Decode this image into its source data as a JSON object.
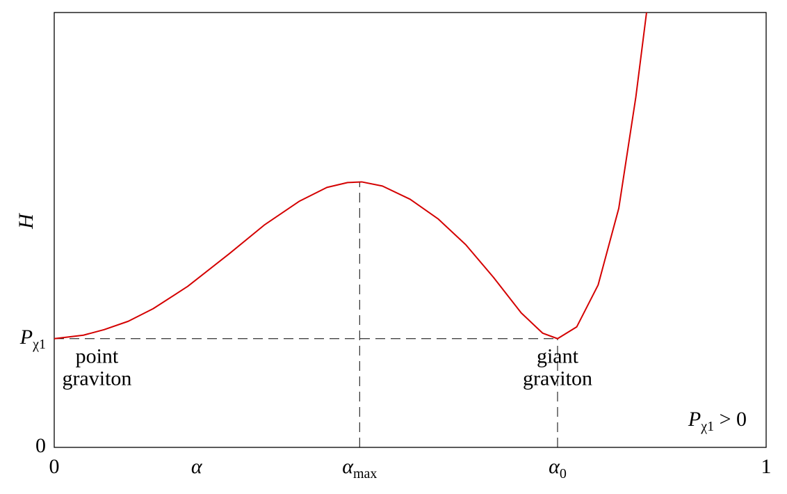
{
  "chart_data": {
    "type": "line",
    "y_label": "H",
    "x_label": "α",
    "note": "Pχ1 > 0",
    "annotations": [
      [
        "point",
        "graviton"
      ],
      [
        "giant",
        "graviton"
      ]
    ],
    "x": [
      0,
      0.041,
      0.07,
      0.104,
      0.139,
      0.1875,
      0.246,
      0.295,
      0.344,
      0.383,
      0.412,
      0.432,
      0.461,
      0.5,
      0.539,
      0.578,
      0.617,
      0.656,
      0.686,
      0.707,
      0.734,
      0.764,
      0.793,
      0.817,
      0.832
    ],
    "series": [
      {
        "color": "#d40000",
        "values": [
          1,
          1.032,
          1.083,
          1.16,
          1.276,
          1.481,
          1.782,
          2.045,
          2.263,
          2.391,
          2.436,
          2.442,
          2.404,
          2.282,
          2.103,
          1.865,
          1.564,
          1.237,
          1.051,
          1.0,
          1.109,
          1.494,
          2.199,
          3.224,
          4.0
        ]
      }
    ],
    "xlim": [
      0,
      1
    ],
    "ylim": [
      0,
      4
    ],
    "xticks": [
      0,
      {
        "value": 0.429,
        "label": "αmax"
      },
      {
        "value": 0.707,
        "label": "α0"
      },
      1
    ],
    "yticks": [
      0,
      {
        "value": 1,
        "label": "Pχ1"
      }
    ]
  }
}
